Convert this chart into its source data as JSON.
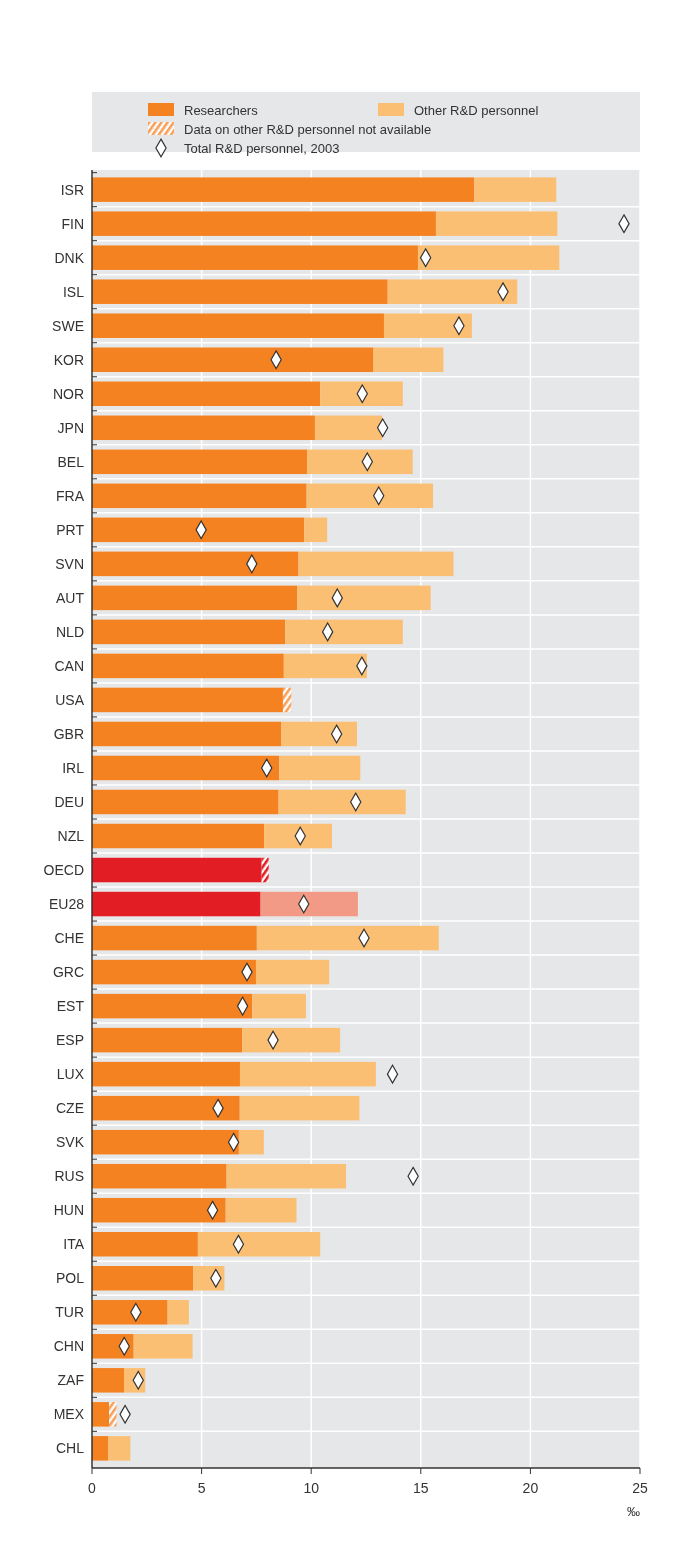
{
  "chart_data": {
    "type": "bar",
    "orientation": "horizontal",
    "stacked": true,
    "xlabel": "‰",
    "legend": "top",
    "grid": "x",
    "xlim": [
      0,
      25
    ],
    "xticks": [
      0,
      5,
      10,
      15,
      20,
      25
    ],
    "categories": [
      "ISR",
      "FIN",
      "DNK",
      "ISL",
      "SWE",
      "KOR",
      "NOR",
      "JPN",
      "BEL",
      "FRA",
      "PRT",
      "SVN",
      "AUT",
      "NLD",
      "CAN",
      "USA",
      "GBR",
      "IRL",
      "DEU",
      "NZL",
      "OECD",
      "EU28",
      "CHE",
      "GRC",
      "EST",
      "ESP",
      "LUX",
      "CZE",
      "SVK",
      "RUS",
      "HUN",
      "ITA",
      "POL",
      "TUR",
      "CHN",
      "ZAF",
      "MEX",
      "CHL"
    ],
    "series": [
      {
        "name": "Researchers",
        "color": "#f58220",
        "colors": [
          "#f58220",
          "#f58220",
          "#f58220",
          "#f58220",
          "#f58220",
          "#f58220",
          "#f58220",
          "#f58220",
          "#f58220",
          "#f58220",
          "#f58220",
          "#f58220",
          "#f58220",
          "#f58220",
          "#f58220",
          "#f58220",
          "#f58220",
          "#f58220",
          "#f58220",
          "#f58220",
          "#e31d24",
          "#e31d24",
          "#f58220",
          "#f58220",
          "#f58220",
          "#f58220",
          "#f58220",
          "#f58220",
          "#f58220",
          "#f58220",
          "#f58220",
          "#f58220",
          "#f58220",
          "#f58220",
          "#f58220",
          "#f58220",
          "#f58220",
          "#f58220"
        ],
        "values": [
          17.44,
          15.69,
          14.87,
          13.49,
          13.32,
          12.84,
          10.41,
          10.17,
          9.81,
          9.79,
          9.68,
          9.42,
          9.37,
          8.82,
          8.75,
          8.71,
          8.64,
          8.54,
          8.51,
          7.85,
          7.74,
          7.69,
          7.52,
          7.48,
          7.31,
          6.85,
          6.75,
          6.74,
          6.7,
          6.14,
          6.1,
          4.83,
          4.61,
          3.45,
          1.9,
          1.46,
          0.78,
          0.75
        ]
      },
      {
        "name": "Other R&D personnel",
        "color": "#fbbf74",
        "colors": [
          "#fbbf74",
          "#fbbf74",
          "#fbbf74",
          "#fbbf74",
          "#fbbf74",
          "#fbbf74",
          "#fbbf74",
          "#fbbf74",
          "#fbbf74",
          "#fbbf74",
          "#fbbf74",
          "#fbbf74",
          "#fbbf74",
          "#fbbf74",
          "#fbbf74",
          null,
          "#fbbf74",
          "#fbbf74",
          "#fbbf74",
          "#fbbf74",
          null,
          "#f29a85",
          "#fbbf74",
          "#fbbf74",
          "#fbbf74",
          "#fbbf74",
          "#fbbf74",
          "#fbbf74",
          "#fbbf74",
          "#fbbf74",
          "#fbbf74",
          "#fbbf74",
          "#fbbf74",
          "#fbbf74",
          "#fbbf74",
          "#fbbf74",
          null,
          "#fbbf74"
        ],
        "values": [
          3.74,
          5.54,
          6.45,
          5.91,
          4.01,
          3.19,
          3.77,
          3.06,
          4.82,
          5.77,
          1.05,
          7.07,
          6.08,
          5.36,
          3.79,
          null,
          3.45,
          3.7,
          5.8,
          3.1,
          null,
          4.44,
          8.3,
          3.34,
          2.45,
          4.47,
          6.2,
          5.46,
          1.14,
          5.45,
          3.23,
          5.58,
          1.43,
          0.97,
          2.69,
          0.97,
          null,
          1.0
        ]
      },
      {
        "name": "Data on other R&D personnel not available",
        "color": "#f7a05a",
        "colors": [
          null,
          null,
          null,
          null,
          null,
          null,
          null,
          null,
          null,
          null,
          null,
          null,
          null,
          null,
          null,
          "#f7a05a",
          null,
          null,
          null,
          null,
          "#e31d24",
          null,
          null,
          null,
          null,
          null,
          null,
          null,
          null,
          null,
          null,
          null,
          null,
          null,
          null,
          null,
          "#f7a05a",
          null
        ],
        "values": [
          null,
          null,
          null,
          null,
          null,
          null,
          null,
          null,
          null,
          null,
          null,
          null,
          null,
          null,
          null,
          0.38,
          null,
          null,
          null,
          null,
          0.32,
          null,
          null,
          null,
          null,
          null,
          null,
          null,
          null,
          null,
          null,
          null,
          null,
          null,
          null,
          null,
          0.34,
          null
        ]
      },
      {
        "name": "Total R&D personnel, 2003",
        "type": "scatter",
        "marker": "diamond",
        "color": "#ffffff",
        "values": [
          null,
          24.27,
          15.22,
          18.75,
          16.74,
          8.4,
          12.33,
          13.26,
          12.56,
          13.08,
          4.98,
          7.29,
          11.19,
          10.75,
          12.31,
          null,
          11.16,
          7.97,
          12.03,
          9.5,
          null,
          9.66,
          12.41,
          7.07,
          6.87,
          8.26,
          13.71,
          5.75,
          6.46,
          14.65,
          5.5,
          6.68,
          5.65,
          2.0,
          1.47,
          2.11,
          1.51,
          null
        ]
      }
    ]
  }
}
